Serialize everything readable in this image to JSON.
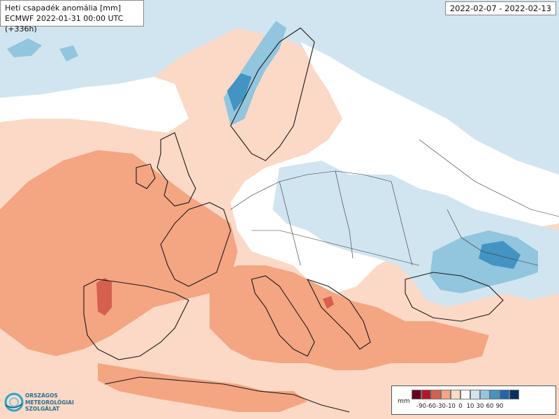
{
  "header": {
    "title": "Heti csapadék anomália [mm]",
    "subtitle": "ECMWF 2022-01-31 00:00 UTC (+336h)",
    "date_range": "2022-02-07 - 2022-02-13"
  },
  "legend": {
    "unit": "mm",
    "colors": [
      "#67001f",
      "#b2182b",
      "#d6604d",
      "#f4a582",
      "#fddbc7",
      "#ffffff",
      "#d1e5f0",
      "#92c5de",
      "#4393c3",
      "#2166ac",
      "#053061"
    ],
    "ticks": [
      "-90",
      "-60",
      "-30",
      "-10",
      "0",
      "10",
      "30",
      "60",
      "90"
    ]
  },
  "logo": {
    "lines": [
      "ORSZÁGOS",
      "METEOROLÓGIAI",
      "SZOLGÁLAT"
    ]
  },
  "colors": {
    "ocean_background": "#fbd9c6",
    "dry_light": "#fddbc7",
    "dry_mid": "#f4a582",
    "dry_strong": "#d6604d",
    "wet_light": "#d1e5f0",
    "wet_mid": "#92c5de",
    "wet_strong": "#4393c3",
    "coastline": "#1a1a1a"
  }
}
